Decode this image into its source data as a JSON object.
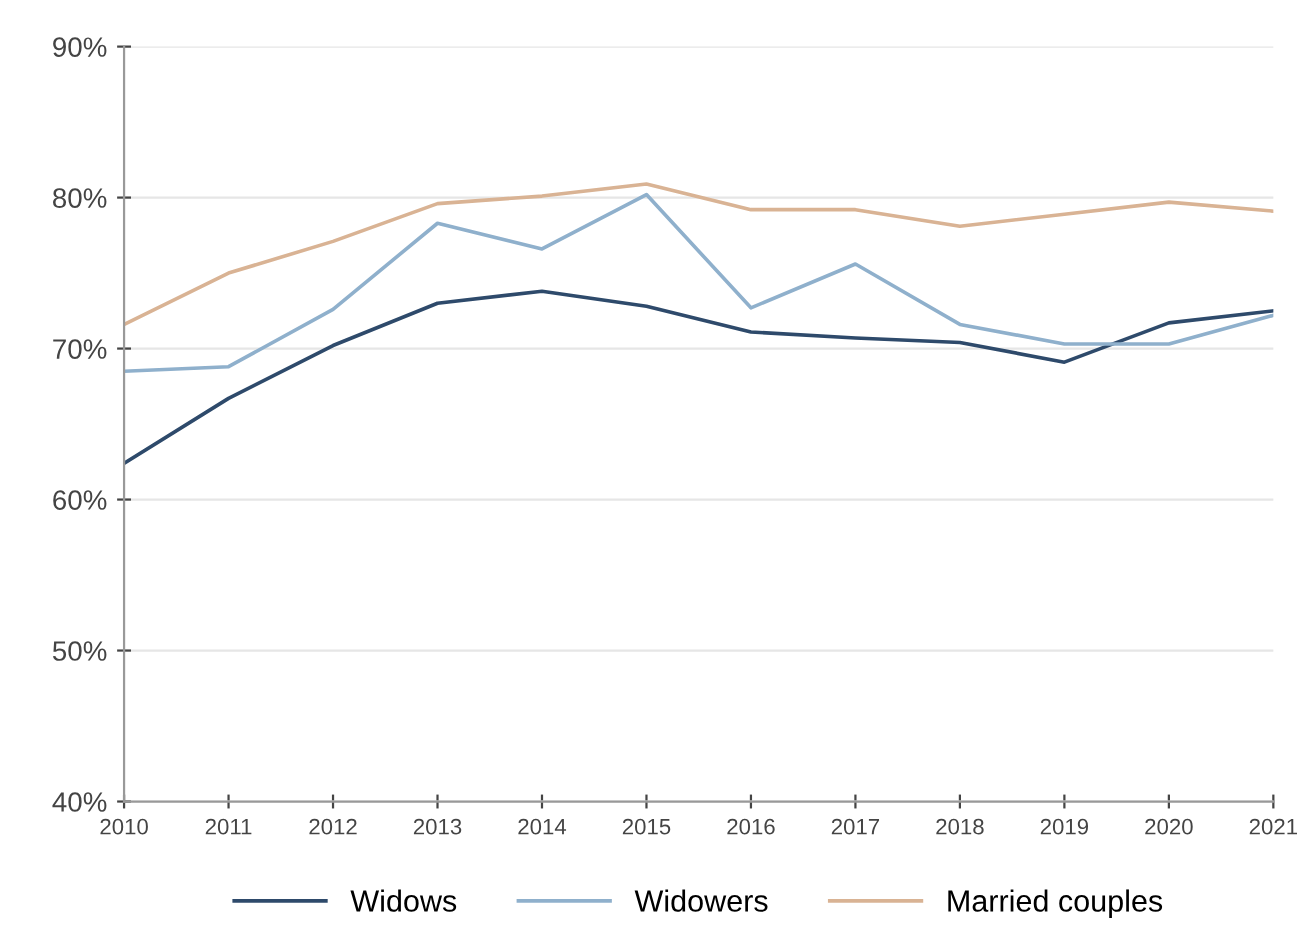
{
  "chart_data": {
    "type": "line",
    "x": [
      2010,
      2011,
      2012,
      2013,
      2014,
      2015,
      2016,
      2017,
      2018,
      2019,
      2020,
      2021
    ],
    "series": [
      {
        "name": "Widows",
        "color": "#2e4a6b",
        "values": [
          62.4,
          66.7,
          70.2,
          73.0,
          73.8,
          72.8,
          71.1,
          70.7,
          70.4,
          69.1,
          71.7,
          72.5
        ]
      },
      {
        "name": "Widowers",
        "color": "#8fb0cc",
        "values": [
          68.5,
          68.8,
          72.6,
          78.3,
          76.6,
          80.2,
          72.7,
          75.6,
          71.6,
          70.3,
          70.3,
          72.2
        ]
      },
      {
        "name": "Married couples",
        "color": "#d9b394",
        "values": [
          71.6,
          75.0,
          77.1,
          79.6,
          80.1,
          80.9,
          79.2,
          79.2,
          78.1,
          78.9,
          79.7,
          79.1
        ]
      }
    ],
    "xlim": [
      2010,
      2021
    ],
    "xticks": [
      2010,
      2011,
      2012,
      2013,
      2014,
      2015,
      2016,
      2017,
      2018,
      2019,
      2020,
      2021
    ],
    "ylim": [
      40,
      90
    ],
    "yticks": [
      {
        "value": 40,
        "label": "40%"
      },
      {
        "value": 50,
        "label": "50%"
      },
      {
        "value": 60,
        "label": "60%"
      },
      {
        "value": 70,
        "label": "70%"
      },
      {
        "value": 80,
        "label": "80%"
      },
      {
        "value": 90,
        "label": "90%"
      }
    ],
    "grid": "y",
    "legend": "bottom",
    "marker": "none",
    "line_style": "solid"
  }
}
